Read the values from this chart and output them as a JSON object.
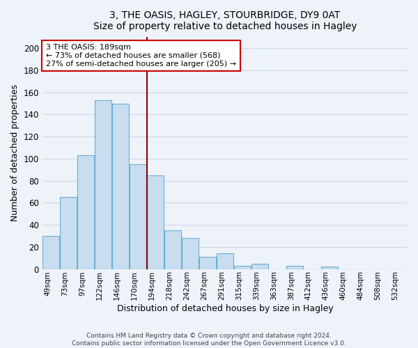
{
  "title": "3, THE OASIS, HAGLEY, STOURBRIDGE, DY9 0AT",
  "subtitle": "Size of property relative to detached houses in Hagley",
  "xlabel": "Distribution of detached houses by size in Hagley",
  "ylabel": "Number of detached properties",
  "bar_labels": [
    "49sqm",
    "73sqm",
    "97sqm",
    "122sqm",
    "146sqm",
    "170sqm",
    "194sqm",
    "218sqm",
    "242sqm",
    "267sqm",
    "291sqm",
    "315sqm",
    "339sqm",
    "363sqm",
    "387sqm",
    "412sqm",
    "436sqm",
    "460sqm",
    "484sqm",
    "508sqm",
    "532sqm"
  ],
  "bar_values": [
    30,
    65,
    103,
    153,
    150,
    95,
    85,
    35,
    28,
    11,
    14,
    3,
    5,
    0,
    3,
    0,
    2,
    0,
    0,
    0,
    0
  ],
  "bar_color": "#c8ddef",
  "bar_edge_color": "#6aadd5",
  "vline_x_idx": 6,
  "vline_color": "#8b0000",
  "annotation_title": "3 THE OASIS: 189sqm",
  "annotation_line1": "← 73% of detached houses are smaller (568)",
  "annotation_line2": "27% of semi-detached houses are larger (205) →",
  "annotation_box_color": "white",
  "annotation_box_edge_color": "#cc0000",
  "ylim": [
    0,
    210
  ],
  "yticks": [
    0,
    20,
    40,
    60,
    80,
    100,
    120,
    140,
    160,
    180,
    200
  ],
  "footer_line1": "Contains HM Land Registry data © Crown copyright and database right 2024.",
  "footer_line2": "Contains public sector information licensed under the Open Government Licence v3.0.",
  "bg_color": "#eef3fa",
  "grid_color": "#d0dcea"
}
